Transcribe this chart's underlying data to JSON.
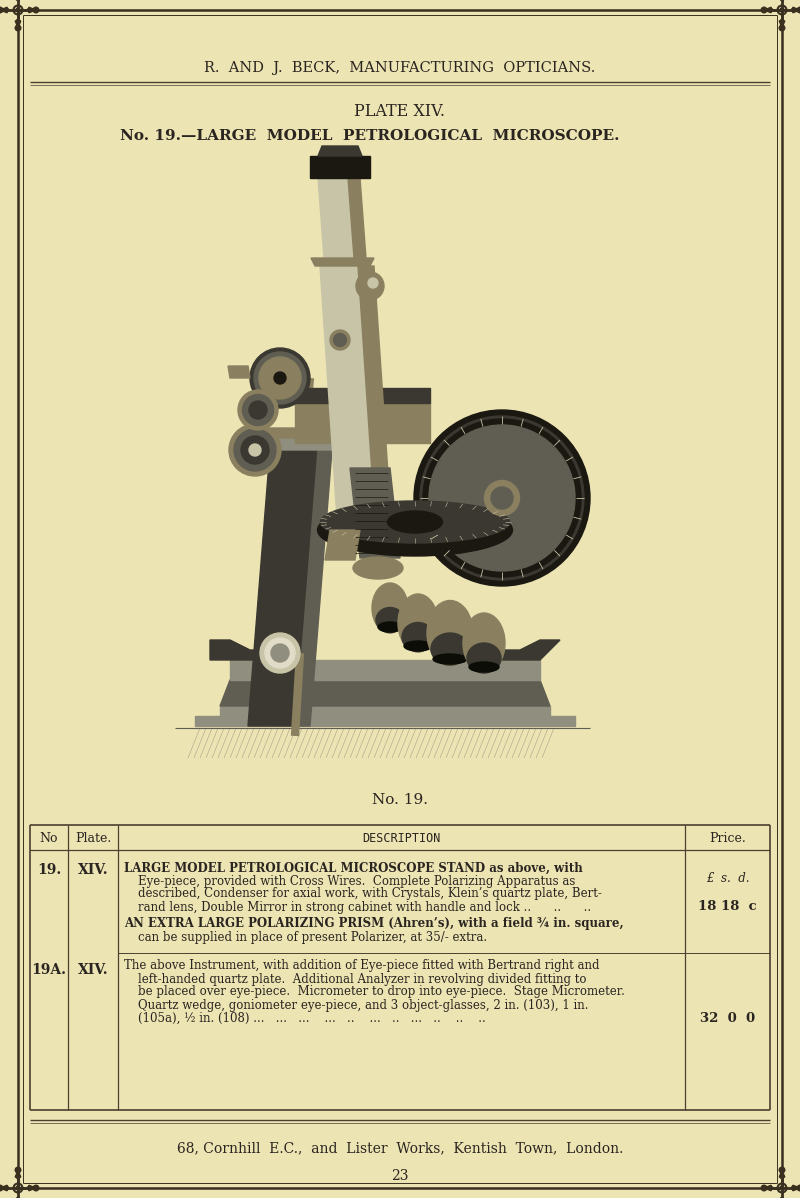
{
  "bg_color": "#ede4b4",
  "text_color": "#2a2520",
  "header_text": "R.  AND  J.  BECK,  MANUFACTURING  OPTICIANS.",
  "plate_title": "PLATE XIV.",
  "item_title": "No. 19.—LARGE  MODEL  PETROLOGICAL  MICROSCOPE.",
  "caption": "No. 19.",
  "footer_text": "68, Cornhill  E.C.,  and  Lister  Works,  Kentish  Town,  London.",
  "page_number": "23",
  "col_no": "No",
  "col_plate": "Plate.",
  "col_desc": "DESCRIPTION",
  "col_price": "Price.",
  "row1_no": "19.",
  "row1_plate": "XIV.",
  "row1_desc_bold": "LARGE MODEL PETROLOGICAL MICROSCOPE STAND as above, with",
  "row1_desc2": "Eye-piece, provided with Cross Wires.  Complete Polarizing Apparatus as",
  "row1_desc3": "described, Condenser for axial work, with Crystals, Klein’s quartz plate, Bert-",
  "row1_desc4": "rand lens, Double Mirror in strong cabinet with handle and lock ..      ..      ..",
  "row1_price_lsd": "£  s.  d.",
  "row1_price_val": "18 18  c",
  "row1_prism1": "AN EXTRA LARGE POLARIZING PRISM (Ahren’s), with a field ¾ in. square,",
  "row1_prism2": "can be supplied in place of present Polarizer, at 35/- extra.",
  "row2_no": "19A.",
  "row2_plate": "XIV.",
  "row2_desc1": "The above Instrument, with addition of Eye-piece fitted with Bertrand right and",
  "row2_desc2": "left-handed quartz plate.  Additional Analyzer in revolving divided fitting to",
  "row2_desc3": "be placed over eye-piece.  Micrometer to drop into eye-piece.  Stage Micrometer.",
  "row2_desc4": "Quartz wedge, goniometer eye-piece, and 3 object-glasses, 2 in. (103), 1 in.",
  "row2_desc5": "(105a), ½ in. (108) ...   ...   ...    ...   ..    ...   ..   ...   ..    ..    ..",
  "row2_price_val": "32  0  0",
  "border_color": "#3a3020",
  "line_color": "#4a4030"
}
